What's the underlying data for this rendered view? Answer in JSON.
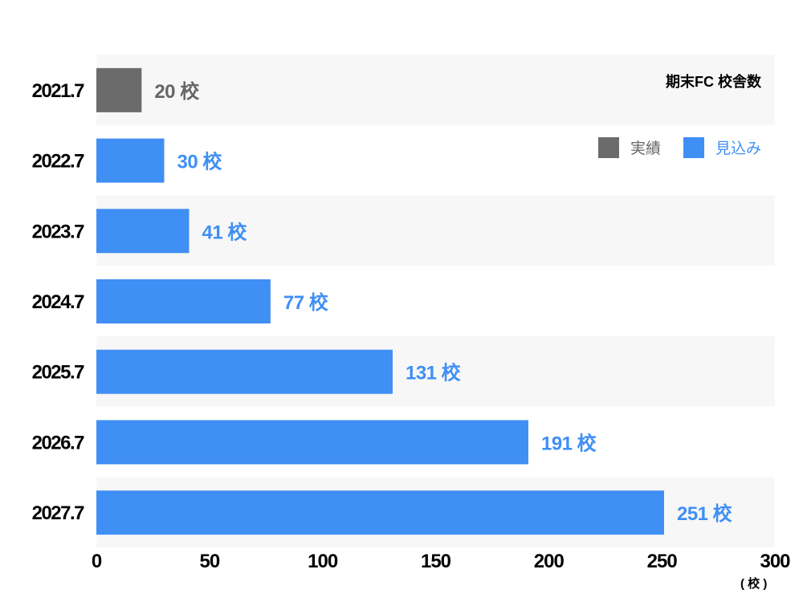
{
  "chart_data": {
    "type": "bar",
    "orientation": "horizontal",
    "title": "期末FC 校舎数",
    "categories": [
      "2021.7",
      "2022.7",
      "2023.7",
      "2024.7",
      "2025.7",
      "2026.7",
      "2027.7"
    ],
    "values": [
      20,
      30,
      41,
      77,
      131,
      191,
      251
    ],
    "data_labels": [
      "20 校",
      "30 校",
      "41 校",
      "77 校",
      "131 校",
      "191 校",
      "251 校"
    ],
    "series_type": [
      "実績",
      "見込み",
      "見込み",
      "見込み",
      "見込み",
      "見込み",
      "見込み"
    ],
    "legend": [
      {
        "name": "実績",
        "color": "#6b6b6b"
      },
      {
        "name": "見込み",
        "color": "#3f8ff5"
      }
    ],
    "legend_position": "top-right",
    "xlim": [
      0,
      300
    ],
    "xticks": [
      "0",
      "50",
      "100",
      "150",
      "200",
      "250",
      "300"
    ],
    "xlabel": "( 校 )",
    "grid": false,
    "colors": {
      "actual": "#6b6b6b",
      "forecast": "#3f8ff5",
      "band": "#f7f7f7"
    }
  }
}
